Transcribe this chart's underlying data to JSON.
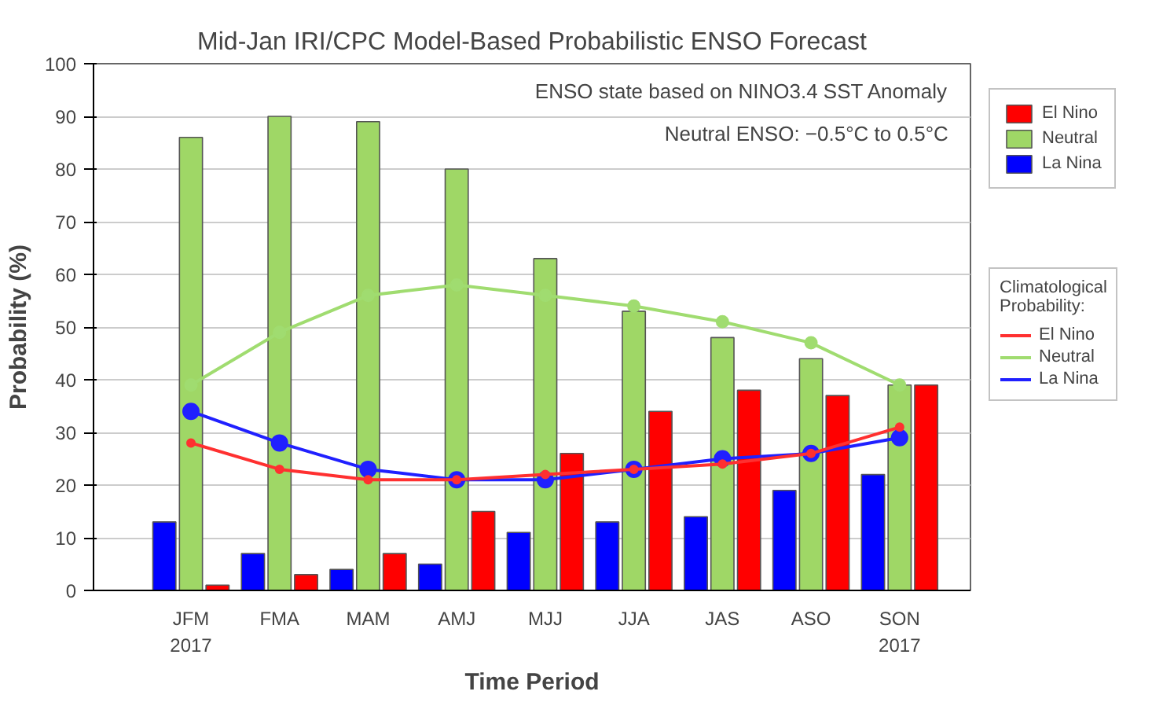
{
  "chart_data": {
    "type": "bar",
    "title": "Mid-Jan IRI/CPC Model-Based Probabilistic ENSO Forecast",
    "xlabel": "Time Period",
    "ylabel": "Probability (%)",
    "legend_title": "Climatological Probability:",
    "categories": [
      "JFM\n2017",
      "FMA",
      "MAM",
      "AMJ",
      "MJJ",
      "JJA",
      "JAS",
      "ASO",
      "SON\n2017"
    ],
    "series": [
      {
        "name": "La Nina",
        "color": "#0000ff",
        "values": [
          13,
          7,
          4,
          5,
          11,
          13,
          14,
          19,
          22
        ]
      },
      {
        "name": "Neutral",
        "color": "#9fd766",
        "values": [
          86,
          90,
          89,
          80,
          63,
          53,
          48,
          44,
          39
        ]
      },
      {
        "name": "El Nino",
        "color": "#ff0000",
        "values": [
          1,
          3,
          7,
          15,
          26,
          34,
          38,
          37,
          39
        ]
      },
      {
        "name": "El Nino",
        "type": "line",
        "color": "#ff3030",
        "marker": "circle",
        "values": [
          28,
          23,
          21,
          21,
          22,
          23,
          24,
          26,
          31
        ]
      },
      {
        "name": "Neutral",
        "type": "line",
        "color": "#a0dc70",
        "marker": "circle",
        "values": [
          39,
          49,
          56,
          58,
          56,
          54,
          51,
          47,
          39
        ]
      },
      {
        "name": "La Nina",
        "type": "line",
        "color": "#2020ff",
        "marker": "circle",
        "values": [
          34,
          28,
          23,
          21,
          21,
          23,
          25,
          26,
          29
        ]
      }
    ],
    "ylim": [
      0,
      100
    ],
    "yticks": [
      0,
      10,
      20,
      30,
      40,
      50,
      60,
      70,
      80,
      90,
      100
    ],
    "grid": "y",
    "legend": "right",
    "annotations": [
      "ENSO state based on NINO3.4 SST Anomaly",
      "Neutral ENSO: −0.5°C to 0.5°C"
    ]
  }
}
